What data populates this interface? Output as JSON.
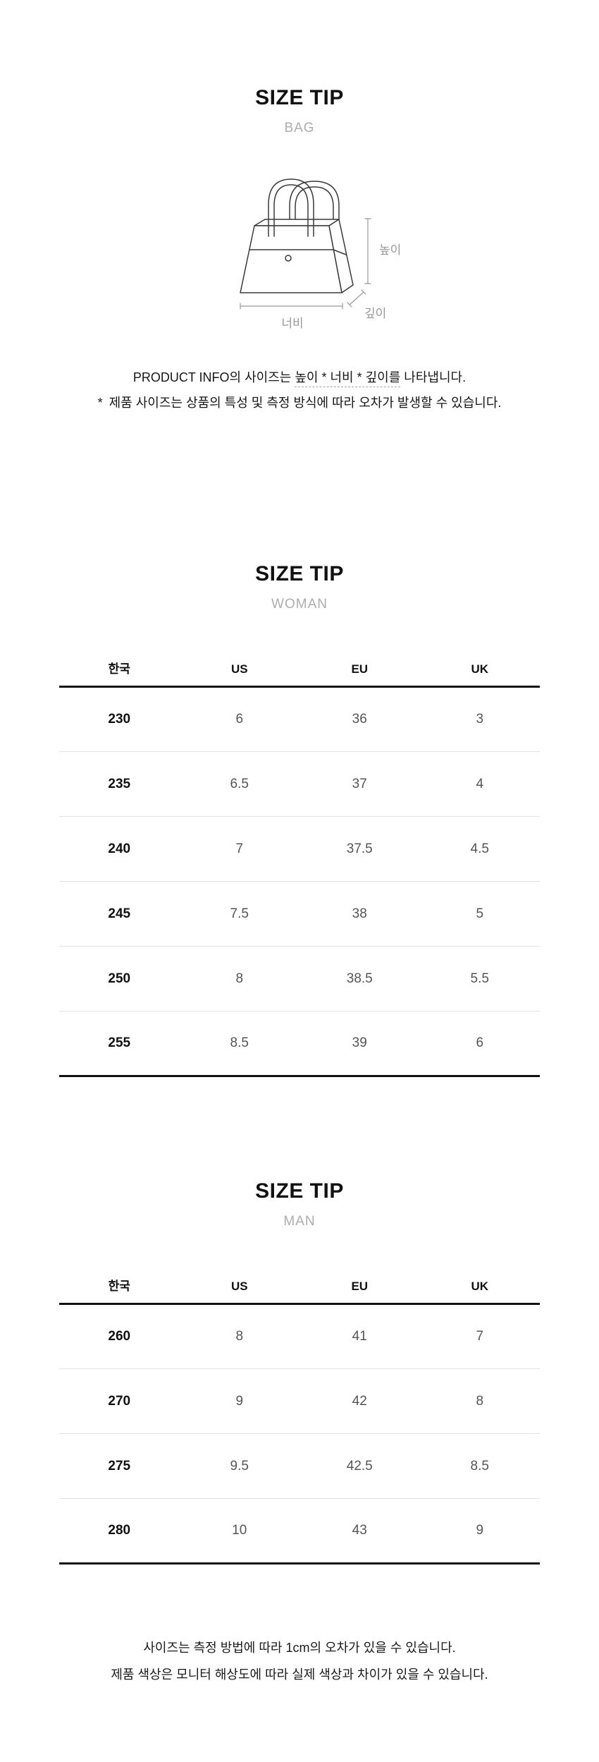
{
  "colors": {
    "accent_rule": "#111111",
    "row_separator": "#e3e3e3",
    "subtitle_text": "#adadad",
    "annotation_gray": "#999999",
    "value_text": "#555555"
  },
  "bag_section": {
    "title": "SIZE TIP",
    "subtitle": "BAG",
    "labels": {
      "height": "높이",
      "width": "너비",
      "depth": "깊이"
    },
    "info_prefix": "PRODUCT INFO의 사이즈는 ",
    "info_underlined": "높이 * 너비 * 깊이를",
    "info_suffix": " 나타냅니다.",
    "note_marker": "*",
    "note_text": "제품 사이즈는 상품의 특성 및 측정 방식에 따라 오차가 발생할 수 있습니다."
  },
  "woman_section": {
    "title": "SIZE TIP",
    "subtitle": "WOMAN",
    "table": {
      "headers": [
        "한국",
        "US",
        "EU",
        "UK"
      ],
      "rows": [
        [
          "230",
          "6",
          "36",
          "3"
        ],
        [
          "235",
          "6.5",
          "37",
          "4"
        ],
        [
          "240",
          "7",
          "37.5",
          "4.5"
        ],
        [
          "245",
          "7.5",
          "38",
          "5"
        ],
        [
          "250",
          "8",
          "38.5",
          "5.5"
        ],
        [
          "255",
          "8.5",
          "39",
          "6"
        ]
      ]
    }
  },
  "man_section": {
    "title": "SIZE TIP",
    "subtitle": "MAN",
    "table": {
      "headers": [
        "한국",
        "US",
        "EU",
        "UK"
      ],
      "rows": [
        [
          "260",
          "8",
          "41",
          "7"
        ],
        [
          "270",
          "9",
          "42",
          "8"
        ],
        [
          "275",
          "9.5",
          "42.5",
          "8.5"
        ],
        [
          "280",
          "10",
          "43",
          "9"
        ]
      ]
    }
  },
  "footer": {
    "line1": "사이즈는 측정 방법에 따라 1cm의 오차가 있을 수 있습니다.",
    "line2": "제품 색상은 모니터 해상도에 따라 실제 색상과 차이가 있을 수 있습니다."
  }
}
